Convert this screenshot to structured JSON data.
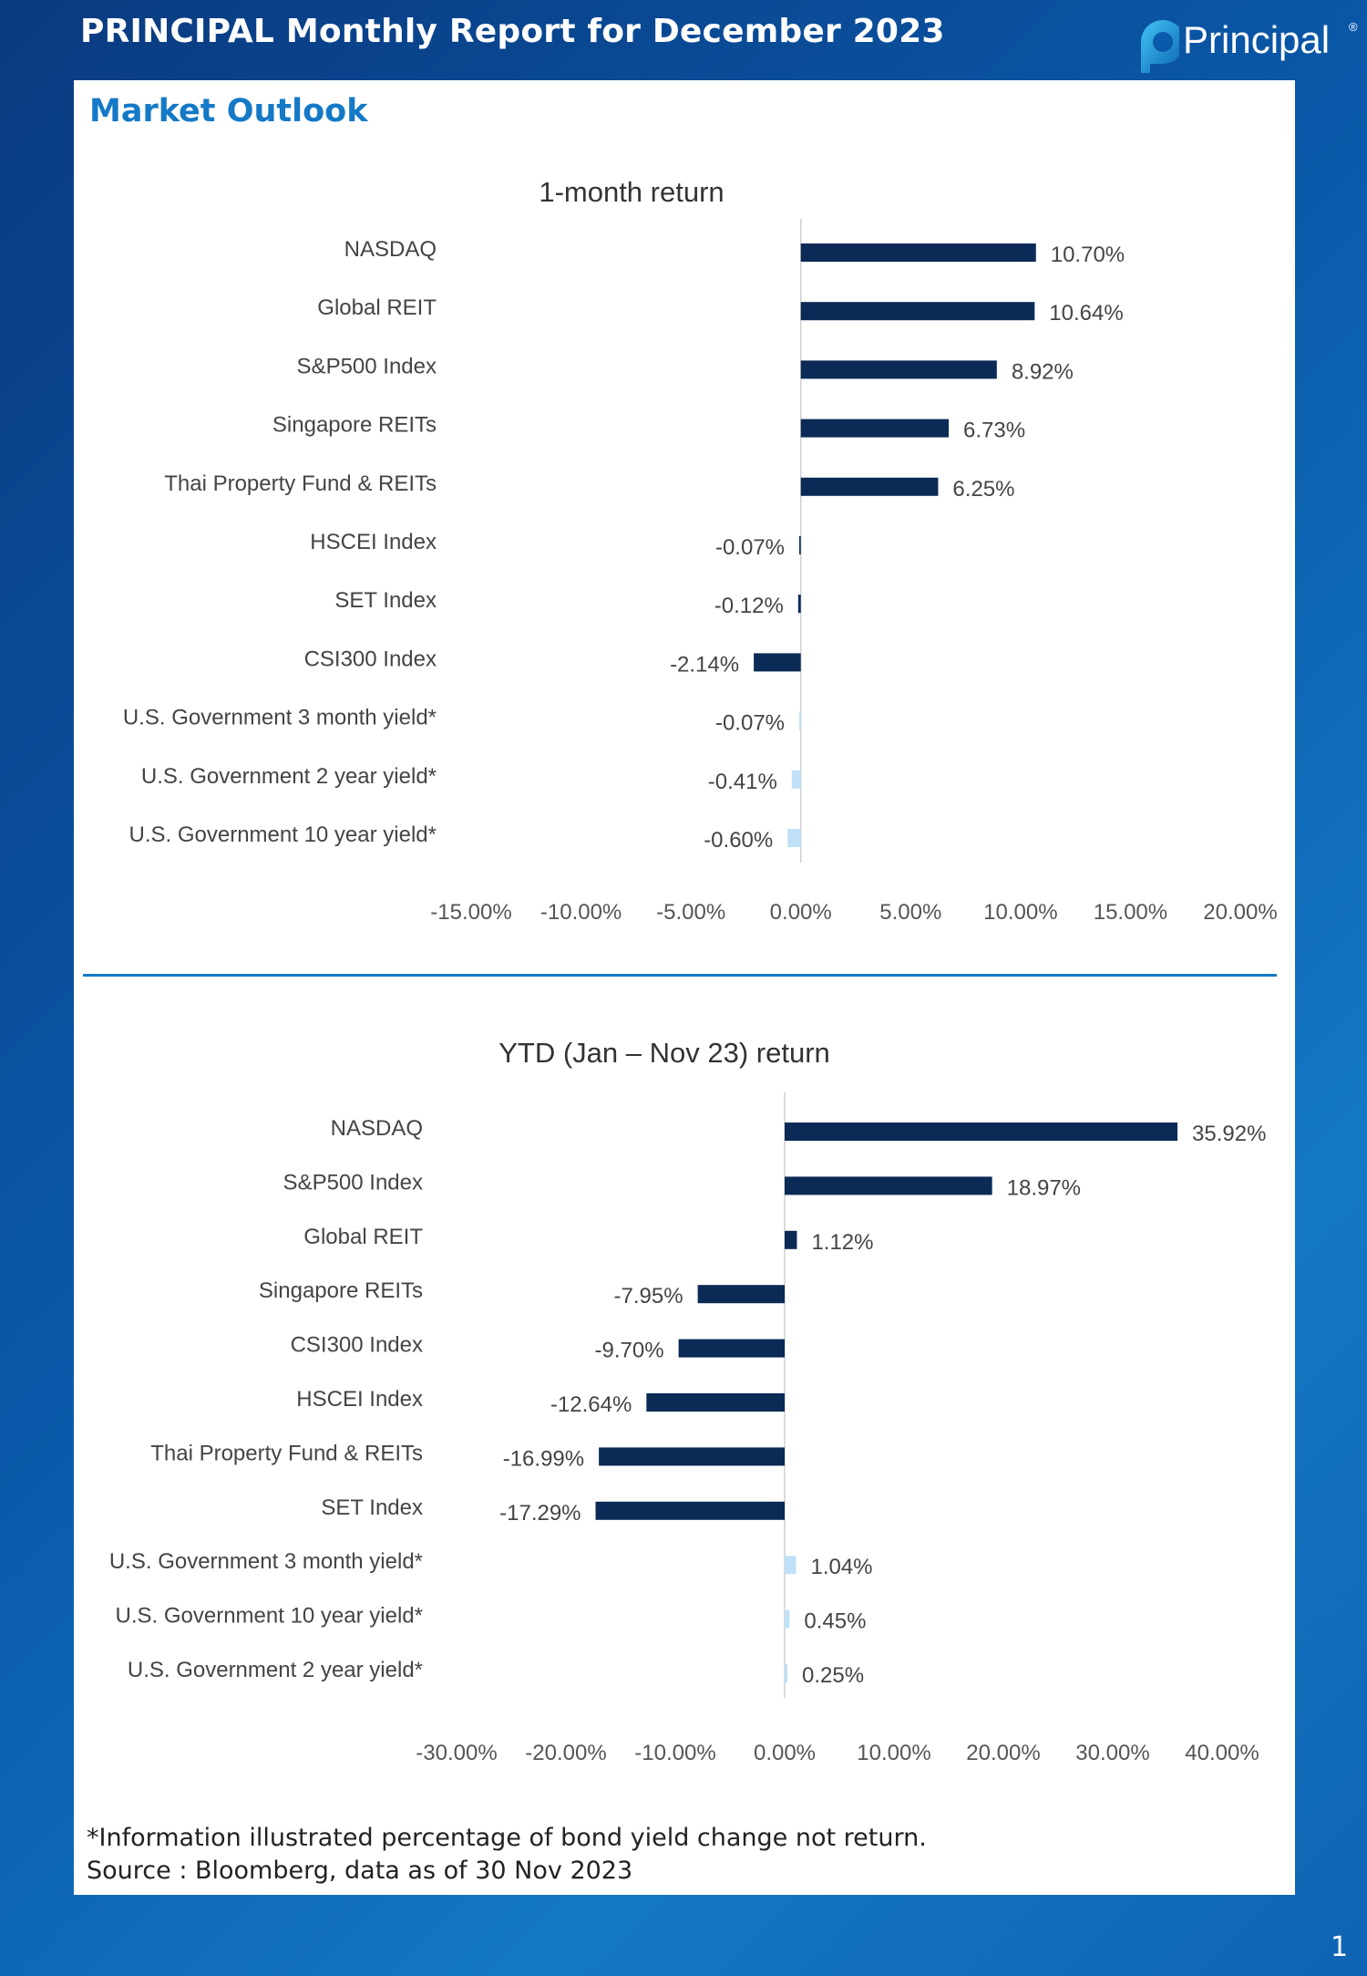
{
  "header": {
    "title": "PRINCIPAL Monthly Report for December 2023",
    "logo_text": "Principal",
    "logo_reg": "®"
  },
  "section_title": "Market Outlook",
  "colors": {
    "dark_bar": "#0b2a55",
    "light_bar": "#bfe0f7",
    "accent": "#1479c6"
  },
  "chart_data": [
    {
      "type": "bar",
      "orientation": "horizontal",
      "title": "1-month return",
      "xlim": [
        -15,
        20
      ],
      "ticks": [
        -15,
        -10,
        -5,
        0,
        5,
        10,
        15,
        20
      ],
      "tick_labels": [
        "-15.00%",
        "-10.00%",
        "-5.00%",
        "0.00%",
        "5.00%",
        "10.00%",
        "15.00%",
        "20.00%"
      ],
      "categories": [
        "NASDAQ",
        "Global REIT",
        "S&P500 Index ",
        "Singapore REITs",
        "Thai Property Fund & REITs",
        "HSCEI Index",
        "SET Index ",
        "CSI300 Index",
        "U.S. Government 3 month yield*",
        "U.S. Government 2 year yield*",
        "U.S. Government 10 year yield*"
      ],
      "values": [
        10.7,
        10.64,
        8.92,
        6.73,
        6.25,
        -0.07,
        -0.12,
        -2.14,
        -0.07,
        -0.41,
        -0.6
      ],
      "labels": [
        "10.70%",
        "10.64%",
        "8.92%",
        "6.73%",
        "6.25%",
        "-0.07%",
        "-0.12%",
        "-2.14%",
        "-0.07%",
        "-0.41%",
        "-0.60%"
      ],
      "shade": [
        "dark",
        "dark",
        "dark",
        "dark",
        "dark",
        "dark",
        "dark",
        "dark",
        "light",
        "light",
        "light"
      ]
    },
    {
      "type": "bar",
      "orientation": "horizontal",
      "title": "YTD (Jan – Nov 23) return",
      "xlim": [
        -30,
        40
      ],
      "ticks": [
        -30,
        -20,
        -10,
        0,
        10,
        20,
        30,
        40
      ],
      "tick_labels": [
        "-30.00%",
        "-20.00%",
        "-10.00%",
        "0.00%",
        "10.00%",
        "20.00%",
        "30.00%",
        "40.00%"
      ],
      "categories": [
        "NASDAQ",
        "S&P500 Index ",
        "Global REIT",
        "Singapore REITs",
        "CSI300 Index ",
        "HSCEI Index",
        "Thai Property Fund & REITs",
        "SET Index ",
        "U.S. Government 3 month yield*",
        "U.S. Government 10 year yield*",
        "U.S. Government 2 year yield*"
      ],
      "values": [
        35.92,
        18.97,
        1.12,
        -7.95,
        -9.7,
        -12.64,
        -16.99,
        -17.29,
        1.04,
        0.45,
        0.25
      ],
      "labels": [
        "35.92%",
        "18.97%",
        "1.12%",
        "-7.95%",
        "-9.70%",
        "-12.64%",
        "-16.99%",
        "-17.29%",
        "1.04%",
        "0.45%",
        "0.25%"
      ],
      "shade": [
        "dark",
        "dark",
        "dark",
        "dark",
        "dark",
        "dark",
        "dark",
        "dark",
        "light",
        "light",
        "light"
      ]
    }
  ],
  "footnote": {
    "line1": "*Information illustrated percentage of bond yield change not return.",
    "line2": "Source : Bloomberg, data as of 30 Nov 2023"
  },
  "page_number": "1"
}
